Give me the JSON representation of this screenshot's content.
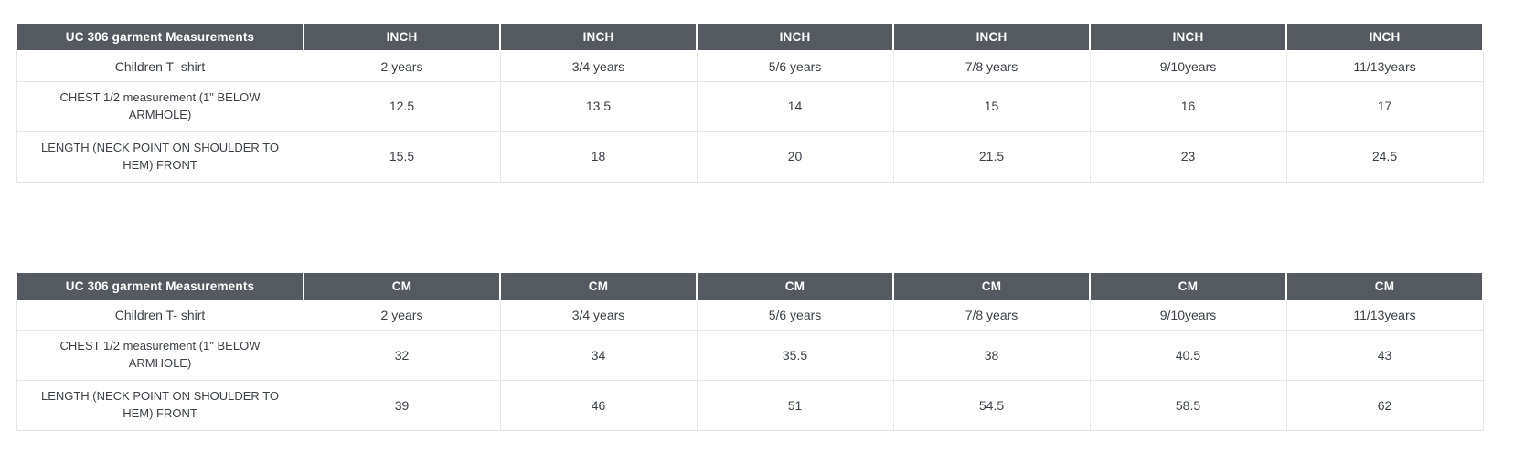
{
  "page": {
    "background": "#ffffff"
  },
  "style": {
    "header_bg": "#555960",
    "header_text": "#ffffff",
    "body_text": "#3c4046",
    "border": "#e4e6e8"
  },
  "tables": [
    {
      "id": "inch",
      "title": "UC 306 garment Measurements",
      "unit": "INCH",
      "product": "Children T- shirt",
      "sizes": [
        "2 years",
        "3/4 years",
        "5/6 years",
        "7/8 years",
        "9/10years",
        "11/13years"
      ],
      "rows": [
        {
          "label": "CHEST 1/2 measurement (1\" BELOW ARMHOLE)",
          "values": [
            "12.5",
            "13.5",
            "14",
            "15",
            "16",
            "17"
          ]
        },
        {
          "label": "LENGTH (NECK POINT ON SHOULDER TO HEM) FRONT",
          "values": [
            "15.5",
            "18",
            "20",
            "21.5",
            "23",
            "24.5"
          ]
        }
      ]
    },
    {
      "id": "cm",
      "title": "UC 306 garment Measurements",
      "unit": "CM",
      "product": "Children T- shirt",
      "sizes": [
        "2 years",
        "3/4 years",
        "5/6 years",
        "7/8 years",
        "9/10years",
        "11/13years"
      ],
      "rows": [
        {
          "label": "CHEST 1/2 measurement (1\" BELOW ARMHOLE)",
          "values": [
            "32",
            "34",
            "35.5",
            "38",
            "40.5",
            "43"
          ]
        },
        {
          "label": "LENGTH (NECK POINT ON SHOULDER TO HEM) FRONT",
          "values": [
            "39",
            "46",
            "51",
            "54.5",
            "58.5",
            "62"
          ]
        }
      ]
    }
  ]
}
